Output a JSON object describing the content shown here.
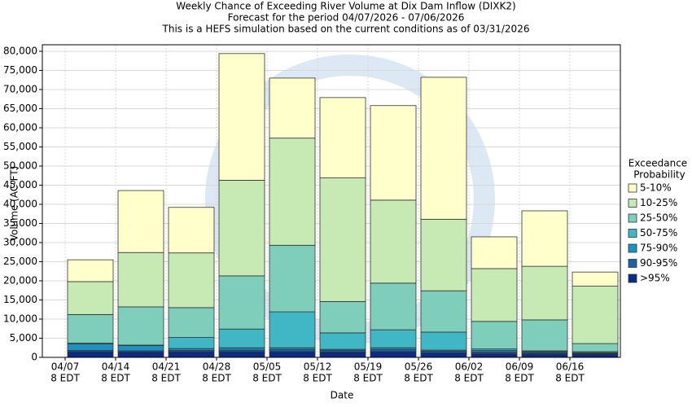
{
  "chart_data": {
    "type": "stacked_bar",
    "title": [
      "Weekly Chance of Exceeding River Volume at Dix Dam Inflow (DIXK2)",
      "Forecast for the period 04/07/2026 - 07/06/2026",
      "This is a HEFS simulation based on the current conditions as of 03/31/2026"
    ],
    "x_label": "Date",
    "y_label": "Volume (AC-FT)",
    "categories": [
      "04/07",
      "04/14",
      "04/21",
      "04/28",
      "05/05",
      "05/12",
      "05/19",
      "05/26",
      "06/02",
      "06/09",
      "06/16"
    ],
    "category_time_label": "8 EDT",
    "legend_title": [
      "Exceedance",
      "Probability"
    ],
    "series": [
      {
        "name": ">95%",
        "color": "#0c2c84",
        "values": [
          1500,
          1400,
          1500,
          1500,
          1500,
          1400,
          1500,
          1200,
          1000,
          900,
          800
        ]
      },
      {
        "name": "90-95%",
        "color": "#225ea8",
        "values": [
          300,
          300,
          300,
          400,
          500,
          400,
          500,
          400,
          400,
          300,
          200
        ]
      },
      {
        "name": "75-90%",
        "color": "#1d91c0",
        "values": [
          1700,
          1400,
          500,
          600,
          500,
          300,
          500,
          300,
          400,
          300,
          200
        ]
      },
      {
        "name": "50-75%",
        "color": "#41b6c4",
        "values": [
          200,
          100,
          2900,
          4900,
          9400,
          4300,
          4700,
          4700,
          400,
          200,
          300
        ]
      },
      {
        "name": "25-50%",
        "color": "#7fcdbb",
        "values": [
          7500,
          10000,
          7800,
          13900,
          17400,
          8200,
          12200,
          10800,
          7200,
          8100,
          2100
        ]
      },
      {
        "name": "10-25%",
        "color": "#c7e9b4",
        "values": [
          8600,
          14200,
          14300,
          25000,
          28000,
          32300,
          21700,
          18700,
          13800,
          14000,
          15000
        ]
      },
      {
        "name": "5-10%",
        "color": "#ffffcc",
        "values": [
          5700,
          16200,
          11900,
          33100,
          15700,
          21000,
          24700,
          37100,
          8300,
          14500,
          3700
        ]
      }
    ],
    "ylim": [
      0,
      81700
    ],
    "yticks": [
      0,
      {
        "value": 5000,
        "label": "5,000"
      },
      {
        "value": 10000,
        "label": "10,000"
      },
      {
        "value": 15000,
        "label": "15,000"
      },
      {
        "value": 20000,
        "label": "20,000"
      },
      {
        "value": 25000,
        "label": "25,000"
      },
      {
        "value": 30000,
        "label": "30,000"
      },
      {
        "value": 35000,
        "label": "35,000"
      },
      {
        "value": 40000,
        "label": "40,000"
      },
      {
        "value": 45000,
        "label": "45,000"
      },
      {
        "value": 50000,
        "label": "50,000"
      },
      {
        "value": 55000,
        "label": "55,000"
      },
      {
        "value": 60000,
        "label": "60,000"
      },
      {
        "value": 65000,
        "label": "65,000"
      },
      {
        "value": 70000,
        "label": "70,000"
      },
      {
        "value": 75000,
        "label": "75,000"
      },
      {
        "value": 80000,
        "label": "80,000"
      }
    ],
    "grid": true,
    "legend_position": "right"
  }
}
